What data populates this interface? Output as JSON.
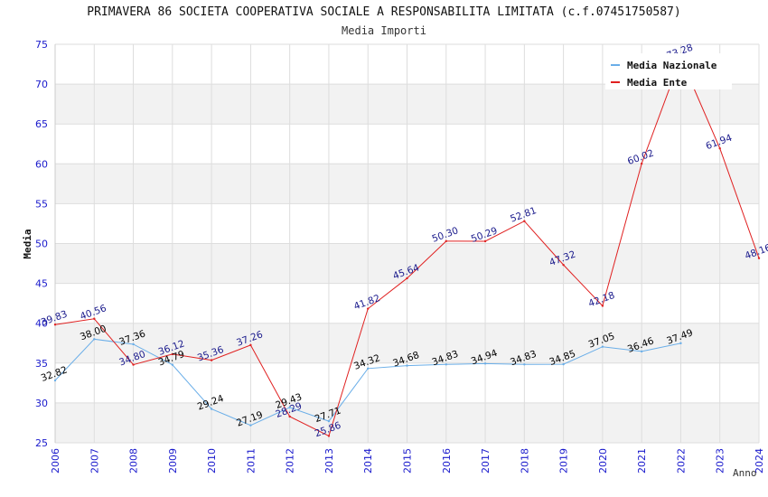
{
  "chart_data": {
    "type": "line",
    "title": "PRIMAVERA 86 SOCIETA COOPERATIVA SOCIALE A RESPONSABILITA LIMITATA (c.f.07451750587)",
    "subtitle": "Media Importi",
    "xlabel": "Anno",
    "ylabel": "Media",
    "ylim": [
      25,
      75
    ],
    "yticks": [
      "25",
      "30",
      "35",
      "40",
      "45",
      "50",
      "55",
      "60",
      "65",
      "70",
      "75"
    ],
    "categories": [
      "2006",
      "2007",
      "2008",
      "2009",
      "2010",
      "2011",
      "2012",
      "2013",
      "2014",
      "2015",
      "2016",
      "2017",
      "2018",
      "2019",
      "2020",
      "2021",
      "2022",
      "2023",
      "2024"
    ],
    "legend_position": "top-right",
    "grid": true,
    "series": [
      {
        "name": "Media Nazionale",
        "color": "#6aaee8",
        "label_color": "#000000",
        "values": [
          32.82,
          38.0,
          37.36,
          34.79,
          29.24,
          27.19,
          29.43,
          27.71,
          34.32,
          34.68,
          34.83,
          34.94,
          34.83,
          34.85,
          37.05,
          36.46,
          37.49,
          null,
          null
        ],
        "labels": [
          "32.82",
          "38.00",
          "37.36",
          "34.79",
          "29.24",
          "27.19",
          "29.43",
          "27.71",
          "34.32",
          "34.68",
          "34.83",
          "34.94",
          "34.83",
          "34.85",
          "37.05",
          "36.46",
          "37.49",
          null,
          null
        ]
      },
      {
        "name": "Media Ente",
        "color": "#e02020",
        "label_color": "#1a1a8c",
        "values": [
          39.83,
          40.56,
          34.8,
          36.12,
          35.36,
          37.26,
          28.29,
          25.86,
          41.82,
          45.64,
          50.3,
          50.29,
          52.81,
          47.32,
          42.18,
          60.02,
          73.28,
          61.94,
          48.16
        ],
        "labels": [
          "39.83",
          "40.56",
          "34.80",
          "36.12",
          "35.36",
          "37.26",
          "28.29",
          "25.86",
          "41.82",
          "45.64",
          "50.30",
          "50.29",
          "52.81",
          "47.32",
          "42.18",
          "60.02",
          "73.28",
          "61.94",
          "48.16"
        ]
      }
    ]
  }
}
